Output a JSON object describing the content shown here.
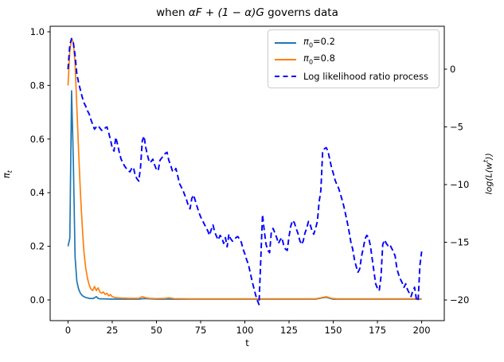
{
  "title": {
    "prefix": "when ",
    "math": "αF + (1 − α)G",
    "suffix": " governs data"
  },
  "axes": {
    "x": {
      "label": "t"
    },
    "y_left": {
      "label_base": "π",
      "label_sub": "t"
    },
    "y_right": {
      "label_pre": "log(L(w",
      "label_sup": "t",
      "label_post": "))"
    }
  },
  "legend": {
    "items": [
      {
        "pre": "π",
        "sub": "0",
        "post": "=0.2",
        "color": "#1f77b4",
        "dash": false
      },
      {
        "pre": "π",
        "sub": "0",
        "post": "=0.8",
        "color": "#ff7f0e",
        "dash": false
      },
      {
        "pre": "",
        "sub": "",
        "post": "Log likelihood ratio process",
        "color": "#0000ff",
        "dash": true
      }
    ]
  },
  "chart_data": {
    "type": "line",
    "title": "when αF + (1 − α)G governs data",
    "xlabel": "t",
    "ylabel_left": "π_t",
    "ylabel_right": "log(L(w^t))",
    "x_range": [
      -10.1,
      212.8
    ],
    "y_left_range": [
      -0.0772,
      1.0207
    ],
    "y_right_range": [
      -21.79,
      3.72
    ],
    "grid": false,
    "legend_position": "upper right",
    "x_ticks": [
      {
        "v": 0,
        "label": "0"
      },
      {
        "v": 25,
        "label": "25"
      },
      {
        "v": 50,
        "label": "50"
      },
      {
        "v": 75,
        "label": "75"
      },
      {
        "v": 100,
        "label": "100"
      },
      {
        "v": 125,
        "label": "125"
      },
      {
        "v": 150,
        "label": "150"
      },
      {
        "v": 175,
        "label": "175"
      },
      {
        "v": 200,
        "label": "200"
      }
    ],
    "y_left_ticks": [
      {
        "v": 0.0,
        "label": "0.0"
      },
      {
        "v": 0.2,
        "label": "0.2"
      },
      {
        "v": 0.4,
        "label": "0.4"
      },
      {
        "v": 0.6,
        "label": "0.6"
      },
      {
        "v": 0.8,
        "label": "0.8"
      },
      {
        "v": 1.0,
        "label": "1.0"
      }
    ],
    "y_right_ticks": [
      {
        "v": 0,
        "label": "0"
      },
      {
        "v": -5,
        "label": "−5"
      },
      {
        "v": -10,
        "label": "−10"
      },
      {
        "v": -15,
        "label": "−15"
      },
      {
        "v": -20,
        "label": "−20"
      }
    ],
    "series": [
      {
        "name": "pi0=0.2",
        "axis": "left",
        "color": "#1f77b4",
        "dash": false,
        "width": 1.7,
        "points": [
          [
            0,
            0.2
          ],
          [
            1,
            0.23
          ],
          [
            2,
            0.78
          ],
          [
            3,
            0.52
          ],
          [
            4,
            0.16
          ],
          [
            5,
            0.07
          ],
          [
            6,
            0.04
          ],
          [
            7,
            0.025
          ],
          [
            8,
            0.017
          ],
          [
            9,
            0.012
          ],
          [
            10,
            0.009
          ],
          [
            12,
            0.006
          ],
          [
            14,
            0.005
          ],
          [
            15,
            0.008
          ],
          [
            16,
            0.012
          ],
          [
            17,
            0.006
          ],
          [
            18,
            0.004
          ],
          [
            20,
            0.004
          ],
          [
            25,
            0.003
          ],
          [
            30,
            0.003
          ],
          [
            40,
            0.003
          ],
          [
            43,
            0.005
          ],
          [
            50,
            0.003
          ],
          [
            60,
            0.003
          ],
          [
            80,
            0.003
          ],
          [
            100,
            0.003
          ],
          [
            120,
            0.003
          ],
          [
            140,
            0.003
          ],
          [
            144,
            0.008
          ],
          [
            146,
            0.01
          ],
          [
            148,
            0.006
          ],
          [
            150,
            0.003
          ],
          [
            160,
            0.003
          ],
          [
            180,
            0.003
          ],
          [
            200,
            0.003
          ]
        ]
      },
      {
        "name": "pi0=0.8",
        "axis": "left",
        "color": "#ff7f0e",
        "dash": false,
        "width": 1.7,
        "points": [
          [
            0,
            0.8
          ],
          [
            1,
            0.93
          ],
          [
            2,
            0.975
          ],
          [
            3,
            0.96
          ],
          [
            4,
            0.88
          ],
          [
            5,
            0.72
          ],
          [
            6,
            0.55
          ],
          [
            7,
            0.4
          ],
          [
            8,
            0.28
          ],
          [
            9,
            0.18
          ],
          [
            10,
            0.12
          ],
          [
            11,
            0.08
          ],
          [
            12,
            0.055
          ],
          [
            13,
            0.04
          ],
          [
            14,
            0.035
          ],
          [
            15,
            0.05
          ],
          [
            16,
            0.035
          ],
          [
            17,
            0.045
          ],
          [
            18,
            0.03
          ],
          [
            19,
            0.025
          ],
          [
            20,
            0.03
          ],
          [
            21,
            0.02
          ],
          [
            22,
            0.025
          ],
          [
            23,
            0.015
          ],
          [
            24,
            0.02
          ],
          [
            25,
            0.012
          ],
          [
            26,
            0.01
          ],
          [
            28,
            0.008
          ],
          [
            30,
            0.007
          ],
          [
            35,
            0.006
          ],
          [
            40,
            0.006
          ],
          [
            42,
            0.012
          ],
          [
            44,
            0.008
          ],
          [
            46,
            0.006
          ],
          [
            50,
            0.005
          ],
          [
            55,
            0.006
          ],
          [
            57,
            0.008
          ],
          [
            60,
            0.005
          ],
          [
            70,
            0.004
          ],
          [
            80,
            0.004
          ],
          [
            100,
            0.004
          ],
          [
            120,
            0.004
          ],
          [
            140,
            0.004
          ],
          [
            143,
            0.008
          ],
          [
            146,
            0.012
          ],
          [
            149,
            0.006
          ],
          [
            152,
            0.004
          ],
          [
            160,
            0.004
          ],
          [
            180,
            0.004
          ],
          [
            200,
            0.004
          ]
        ]
      },
      {
        "name": "Log likelihood ratio process",
        "axis": "right",
        "color": "#0000ff",
        "dash": true,
        "width": 1.9,
        "points": [
          [
            0,
            0
          ],
          [
            1,
            2.1
          ],
          [
            2,
            2.65
          ],
          [
            3,
            2.3
          ],
          [
            4,
            1.2
          ],
          [
            5,
            -0.4
          ],
          [
            6,
            -1.2
          ],
          [
            7,
            -1.8
          ],
          [
            8,
            -2.4
          ],
          [
            9,
            -2.9
          ],
          [
            10,
            -3.2
          ],
          [
            11,
            -3.6
          ],
          [
            12,
            -3.9
          ],
          [
            13,
            -4.4
          ],
          [
            14,
            -4.8
          ],
          [
            15,
            -5.2
          ],
          [
            16,
            -5.0
          ],
          [
            17,
            -4.9
          ],
          [
            18,
            -5.1
          ],
          [
            19,
            -5.3
          ],
          [
            20,
            -5.3
          ],
          [
            21,
            -5.1
          ],
          [
            22,
            -5.0
          ],
          [
            23,
            -5.5
          ],
          [
            24,
            -6.1
          ],
          [
            25,
            -6.8
          ],
          [
            26,
            -7.1
          ],
          [
            27,
            -5.9
          ],
          [
            28,
            -6.5
          ],
          [
            29,
            -7.2
          ],
          [
            30,
            -7.8
          ],
          [
            31,
            -8.1
          ],
          [
            32,
            -8.4
          ],
          [
            33,
            -8.6
          ],
          [
            34,
            -8.8
          ],
          [
            35,
            -8.9
          ],
          [
            36,
            -8.6
          ],
          [
            37,
            -8.5
          ],
          [
            38,
            -9.2
          ],
          [
            39,
            -9.5
          ],
          [
            40,
            -9.7
          ],
          [
            41,
            -8.5
          ],
          [
            42,
            -6.2
          ],
          [
            43,
            -5.8
          ],
          [
            44,
            -6.8
          ],
          [
            45,
            -7.5
          ],
          [
            46,
            -8.1
          ],
          [
            47,
            -8.0
          ],
          [
            48,
            -7.8
          ],
          [
            49,
            -8.3
          ],
          [
            50,
            -8.7
          ],
          [
            51,
            -8.8
          ],
          [
            52,
            -7.9
          ],
          [
            53,
            -7.7
          ],
          [
            54,
            -7.5
          ],
          [
            55,
            -7.3
          ],
          [
            56,
            -7.2
          ],
          [
            57,
            -7.9
          ],
          [
            58,
            -8.3
          ],
          [
            59,
            -8.8
          ],
          [
            60,
            -8.9
          ],
          [
            61,
            -8.6
          ],
          [
            62,
            -9.2
          ],
          [
            63,
            -9.9
          ],
          [
            64,
            -10.2
          ],
          [
            65,
            -10.5
          ],
          [
            66,
            -10.9
          ],
          [
            67,
            -11.3
          ],
          [
            68,
            -11.8
          ],
          [
            69,
            -12.1
          ],
          [
            70,
            -11.2
          ],
          [
            71,
            -10.9
          ],
          [
            72,
            -11.4
          ],
          [
            73,
            -11.9
          ],
          [
            74,
            -12.4
          ],
          [
            75,
            -12.8
          ],
          [
            76,
            -13.1
          ],
          [
            77,
            -13.4
          ],
          [
            78,
            -13.7
          ],
          [
            79,
            -14.0
          ],
          [
            80,
            -14.4
          ],
          [
            81,
            -13.9
          ],
          [
            82,
            -13.5
          ],
          [
            83,
            -14.1
          ],
          [
            84,
            -14.5
          ],
          [
            85,
            -14.8
          ],
          [
            86,
            -14.4
          ],
          [
            87,
            -14.6
          ],
          [
            88,
            -15.1
          ],
          [
            89,
            -14.6
          ],
          [
            90,
            -15.4
          ],
          [
            91,
            -14.3
          ],
          [
            92,
            -14.7
          ],
          [
            93,
            -14.9
          ],
          [
            94,
            -14.8
          ],
          [
            95,
            -14.6
          ],
          [
            96,
            -14.5
          ],
          [
            97,
            -14.7
          ],
          [
            98,
            -15.0
          ],
          [
            99,
            -15.6
          ],
          [
            100,
            -16.0
          ],
          [
            101,
            -16.5
          ],
          [
            102,
            -16.9
          ],
          [
            103,
            -17.6
          ],
          [
            104,
            -18.3
          ],
          [
            105,
            -18.9
          ],
          [
            106,
            -19.5
          ],
          [
            107,
            -20.0
          ],
          [
            108,
            -20.4
          ],
          [
            109,
            -16.5
          ],
          [
            110,
            -12.6
          ],
          [
            111,
            -14.0
          ],
          [
            112,
            -15.2
          ],
          [
            113,
            -15.7
          ],
          [
            114,
            -15.9
          ],
          [
            115,
            -14.1
          ],
          [
            116,
            -13.8
          ],
          [
            117,
            -14.2
          ],
          [
            118,
            -14.6
          ],
          [
            119,
            -15.1
          ],
          [
            120,
            -14.8
          ],
          [
            121,
            -14.6
          ],
          [
            122,
            -15.3
          ],
          [
            123,
            -15.6
          ],
          [
            124,
            -15.7
          ],
          [
            125,
            -14.5
          ],
          [
            126,
            -13.6
          ],
          [
            127,
            -13.1
          ],
          [
            128,
            -13.3
          ],
          [
            129,
            -13.8
          ],
          [
            130,
            -14.2
          ],
          [
            131,
            -14.8
          ],
          [
            132,
            -15.2
          ],
          [
            133,
            -14.9
          ],
          [
            134,
            -14.2
          ],
          [
            135,
            -13.8
          ],
          [
            136,
            -13.2
          ],
          [
            137,
            -13.5
          ],
          [
            138,
            -14.0
          ],
          [
            139,
            -14.3
          ],
          [
            140,
            -13.8
          ],
          [
            141,
            -13.2
          ],
          [
            142,
            -11.5
          ],
          [
            143,
            -10.5
          ],
          [
            144,
            -7.2
          ],
          [
            145,
            -6.9
          ],
          [
            146,
            -6.8
          ],
          [
            147,
            -7.1
          ],
          [
            148,
            -7.8
          ],
          [
            149,
            -8.5
          ],
          [
            150,
            -9.0
          ],
          [
            151,
            -9.6
          ],
          [
            152,
            -10.0
          ],
          [
            153,
            -10.3
          ],
          [
            154,
            -10.8
          ],
          [
            155,
            -11.3
          ],
          [
            156,
            -11.9
          ],
          [
            157,
            -12.6
          ],
          [
            158,
            -13.3
          ],
          [
            159,
            -14.1
          ],
          [
            160,
            -15.0
          ],
          [
            161,
            -15.6
          ],
          [
            162,
            -16.5
          ],
          [
            163,
            -17.1
          ],
          [
            164,
            -17.6
          ],
          [
            165,
            -17.3
          ],
          [
            166,
            -16.2
          ],
          [
            167,
            -15.5
          ],
          [
            168,
            -14.7
          ],
          [
            169,
            -14.4
          ],
          [
            170,
            -14.6
          ],
          [
            171,
            -15.3
          ],
          [
            172,
            -16.4
          ],
          [
            173,
            -17.5
          ],
          [
            174,
            -18.6
          ],
          [
            175,
            -19.0
          ],
          [
            176,
            -19.2
          ],
          [
            177,
            -18.0
          ],
          [
            178,
            -15.2
          ],
          [
            179,
            -14.8
          ],
          [
            180,
            -15.1
          ],
          [
            181,
            -15.3
          ],
          [
            182,
            -15.2
          ],
          [
            183,
            -15.5
          ],
          [
            184,
            -15.8
          ],
          [
            185,
            -16.2
          ],
          [
            186,
            -17.3
          ],
          [
            187,
            -17.8
          ],
          [
            188,
            -18.2
          ],
          [
            189,
            -18.5
          ],
          [
            190,
            -18.9
          ],
          [
            191,
            -18.6
          ],
          [
            192,
            -19.1
          ],
          [
            193,
            -19.4
          ],
          [
            194,
            -19.7
          ],
          [
            195,
            -19.2
          ],
          [
            196,
            -18.9
          ],
          [
            197,
            -19.9
          ],
          [
            198,
            -20.1
          ],
          [
            199,
            -17.0
          ],
          [
            200,
            -15.8
          ]
        ]
      }
    ]
  }
}
